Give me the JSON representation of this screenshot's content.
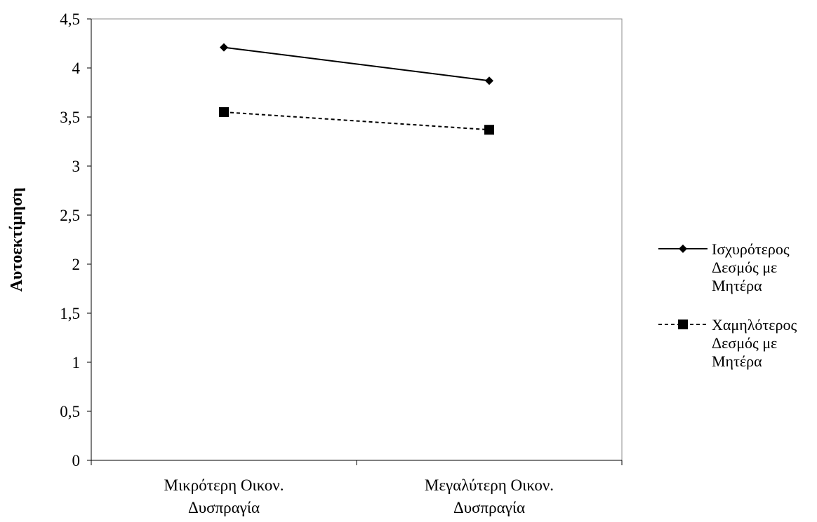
{
  "chart_data": {
    "type": "line",
    "title": "",
    "xlabel": "",
    "ylabel": "Αυτοεκτίμηση",
    "categories": [
      [
        "Μικρότερη Οικον.",
        "Δυσπραγία"
      ],
      [
        "Μεγαλύτερη Οικον.",
        "Δυσπραγία"
      ]
    ],
    "ylim": [
      0,
      4.5
    ],
    "yticks": [
      "0",
      "0,5",
      "1",
      "1,5",
      "2",
      "2,5",
      "3",
      "3,5",
      "4",
      "4,5"
    ],
    "grid": false,
    "legend_position": "right",
    "series": [
      {
        "name": [
          "Ισχυρότερος",
          "Δεσμός με",
          "Μητέρα"
        ],
        "values": [
          4.21,
          3.87
        ],
        "line_style": "solid",
        "marker": "diamond",
        "color": "#000000"
      },
      {
        "name": [
          "Χαμηλότερος",
          "Δεσμός με",
          "Μητέρα"
        ],
        "values": [
          3.55,
          3.37
        ],
        "line_style": "dashed",
        "marker": "square",
        "color": "#000000"
      }
    ]
  }
}
